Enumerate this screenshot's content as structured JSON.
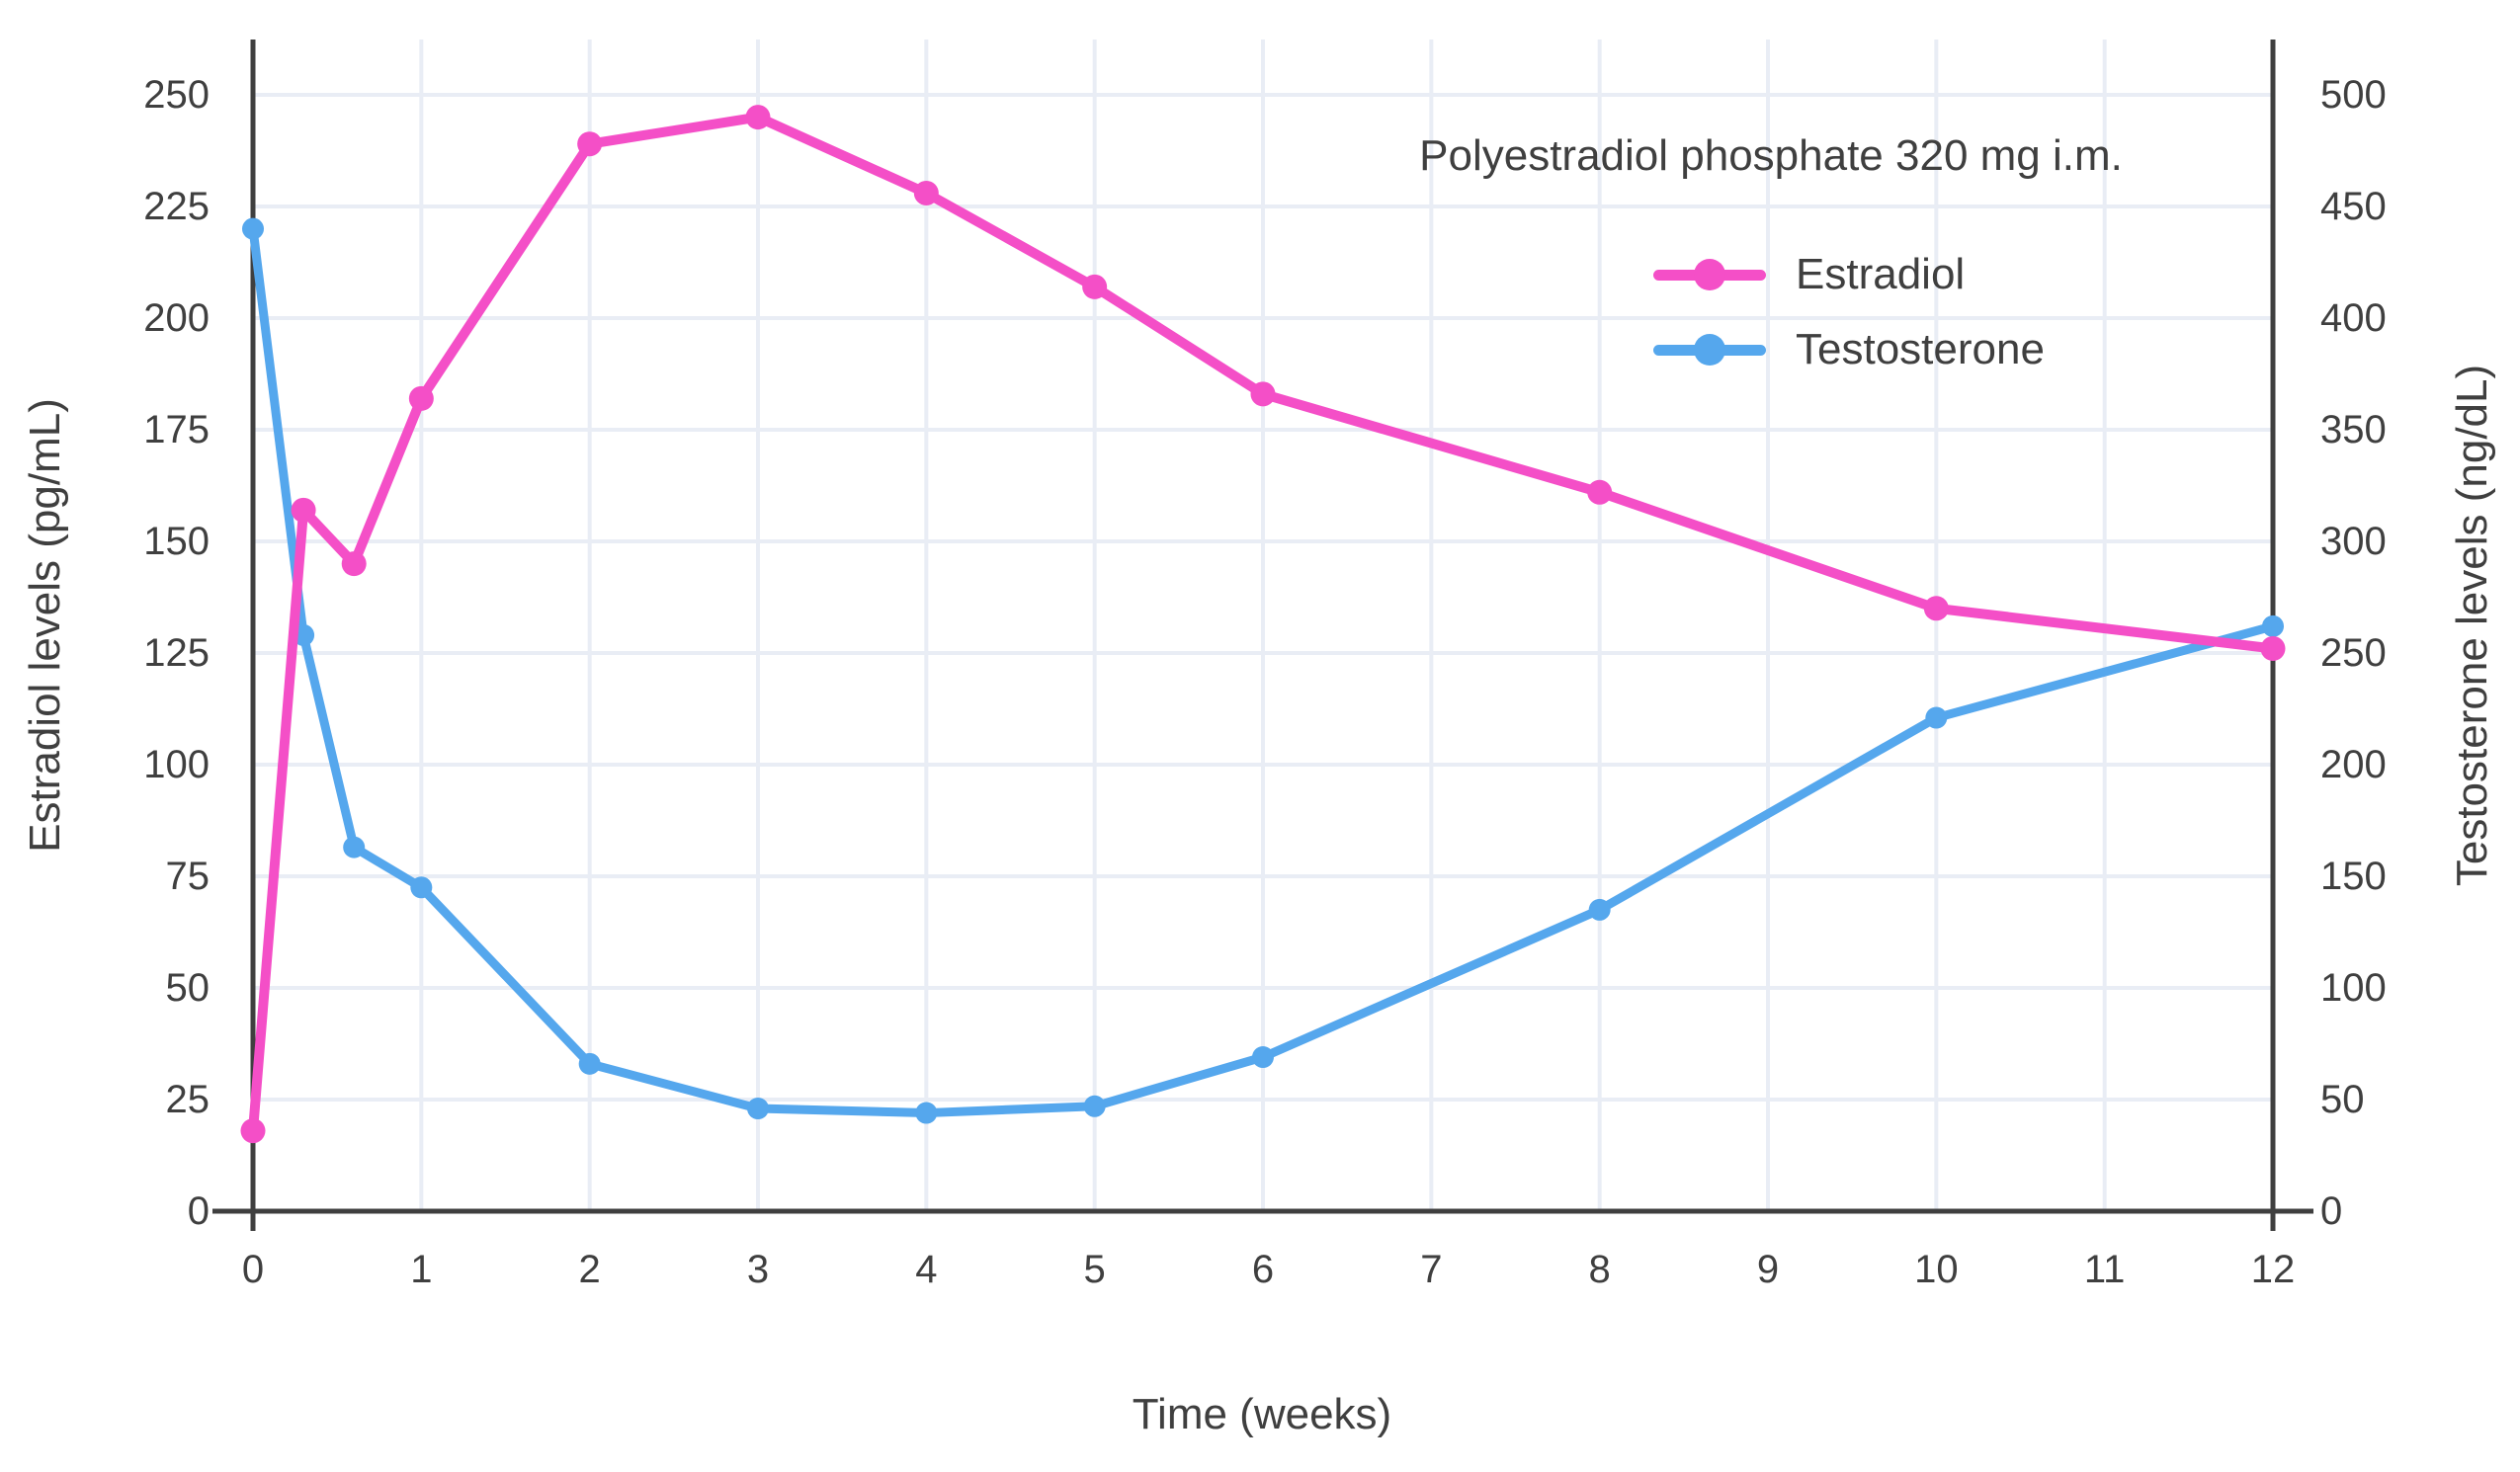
{
  "chart_data": {
    "type": "line",
    "title_annotation": "Polyestradiol phosphate 320 mg i.m.",
    "xlabel": "Time (weeks)",
    "ylabel_left": "Estradiol levels (pg/mL)",
    "ylabel_right": "Testosterone levels (ng/dL)",
    "xlim": [
      0,
      12
    ],
    "ylim_left": [
      0,
      250
    ],
    "ylim_right": [
      0,
      500
    ],
    "grid": true,
    "legend_position": "top-right-inside",
    "x_ticks": [
      0,
      1,
      2,
      3,
      4,
      5,
      6,
      7,
      8,
      9,
      10,
      11,
      12
    ],
    "y_left_ticks": [
      0,
      25,
      50,
      75,
      100,
      125,
      150,
      175,
      200,
      225,
      250
    ],
    "y_right_ticks": [
      0,
      50,
      100,
      150,
      200,
      250,
      300,
      350,
      400,
      450,
      500
    ],
    "x": [
      0,
      0.3,
      0.6,
      1,
      2,
      3,
      4,
      5,
      6,
      8,
      10,
      12
    ],
    "series": [
      {
        "name": "Estradiol",
        "axis": "left",
        "unit": "pg/mL",
        "color": "#F44FC7",
        "values": [
          18,
          157,
          145,
          182,
          239,
          245,
          228,
          207,
          183,
          161,
          135,
          126
        ]
      },
      {
        "name": "Testosterone",
        "axis": "right",
        "unit": "ng/dL",
        "color": "#55A7ED",
        "values": [
          440,
          258,
          163,
          145,
          66,
          46,
          44,
          47,
          69,
          135,
          221,
          262
        ]
      }
    ]
  },
  "colors": {
    "estradiol": "#F44FC7",
    "testosterone": "#55A7ED",
    "gridline": "#E9EDF5",
    "axis_line": "#3F3F3F",
    "text": "#3F3F3F",
    "background": "#FFFFFF"
  }
}
